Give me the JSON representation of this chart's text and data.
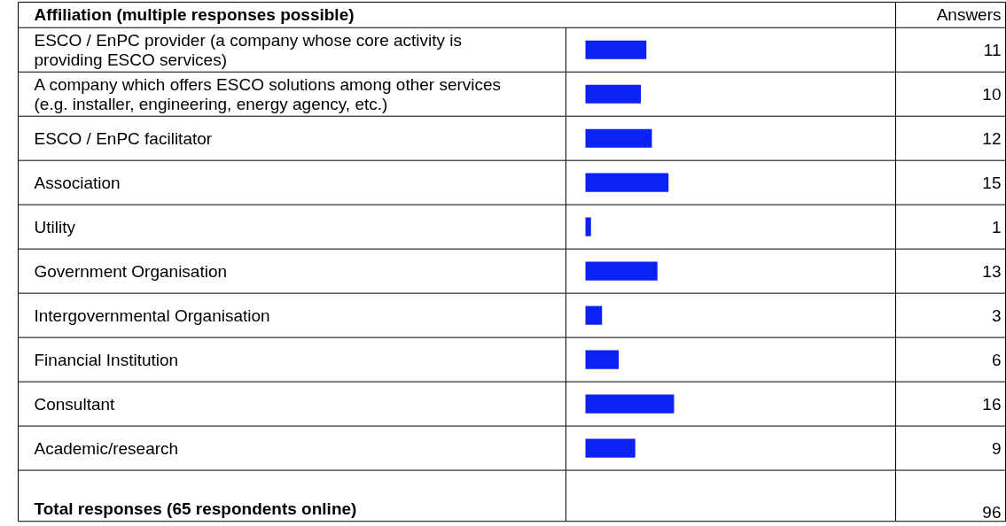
{
  "chart_data": {
    "type": "bar",
    "orientation": "horizontal",
    "title": "Affiliation (multiple responses possible)",
    "color": "#0a22f5",
    "data_labels": true,
    "categories": [
      "ESCO / EnPC provider (a company whose core activity is providing ESCO services)",
      "A company which offers ESCO solutions among other services (e.g. installer, engineering, energy agency, etc.)",
      "ESCO / EnPC facilitator",
      "Association",
      "Utility",
      "Government Organisation",
      "Intergovernmental Organisation",
      "Financial Institution",
      "Consultant",
      "Academic/research"
    ],
    "values": [
      11,
      10,
      12,
      15,
      1,
      13,
      3,
      6,
      16,
      9
    ],
    "annotations": [
      "Answers",
      "Total responses (65 respondents online)",
      "96"
    ]
  }
}
